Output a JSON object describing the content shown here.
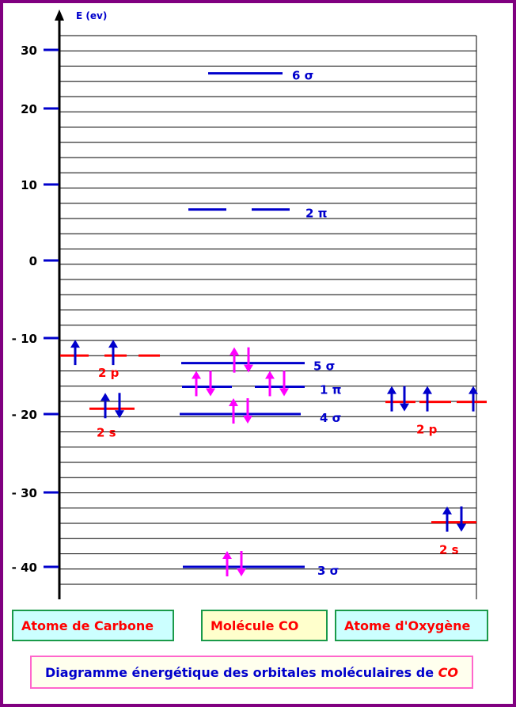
{
  "axis": {
    "label": "E (ev)",
    "ticks": [
      30,
      20,
      10,
      0,
      {
        "value": -10,
        "label": "- 10"
      },
      {
        "value": -20,
        "label": "- 20"
      },
      {
        "value": -30,
        "label": "- 30"
      },
      {
        "value": -40,
        "label": "- 40"
      }
    ]
  },
  "carbon": {
    "title": "Atome de Carbone",
    "levels": [
      {
        "label": "2 p",
        "energy": -12.3
      },
      {
        "label": "2 s",
        "energy": -19.3
      }
    ]
  },
  "molecule": {
    "title": "Molécule CO",
    "levels": [
      {
        "label": "6 σ",
        "energy": 26
      },
      {
        "label": "2 π",
        "energy": 6.7
      },
      {
        "label": "5 σ",
        "energy": -13.3
      },
      {
        "label": "1 π",
        "energy": -16.4
      },
      {
        "label": "4 σ",
        "energy": -20
      },
      {
        "label": "3 σ",
        "energy": -40
      }
    ]
  },
  "oxygen": {
    "title": "Atome d'Oxygène",
    "levels": [
      {
        "label": "2 p",
        "energy": -18.4
      },
      {
        "label": "2 s",
        "energy": -34
      }
    ]
  },
  "caption": {
    "text": "Diagramme énergétique des orbitales moléculaires de",
    "formula": "CO"
  }
}
